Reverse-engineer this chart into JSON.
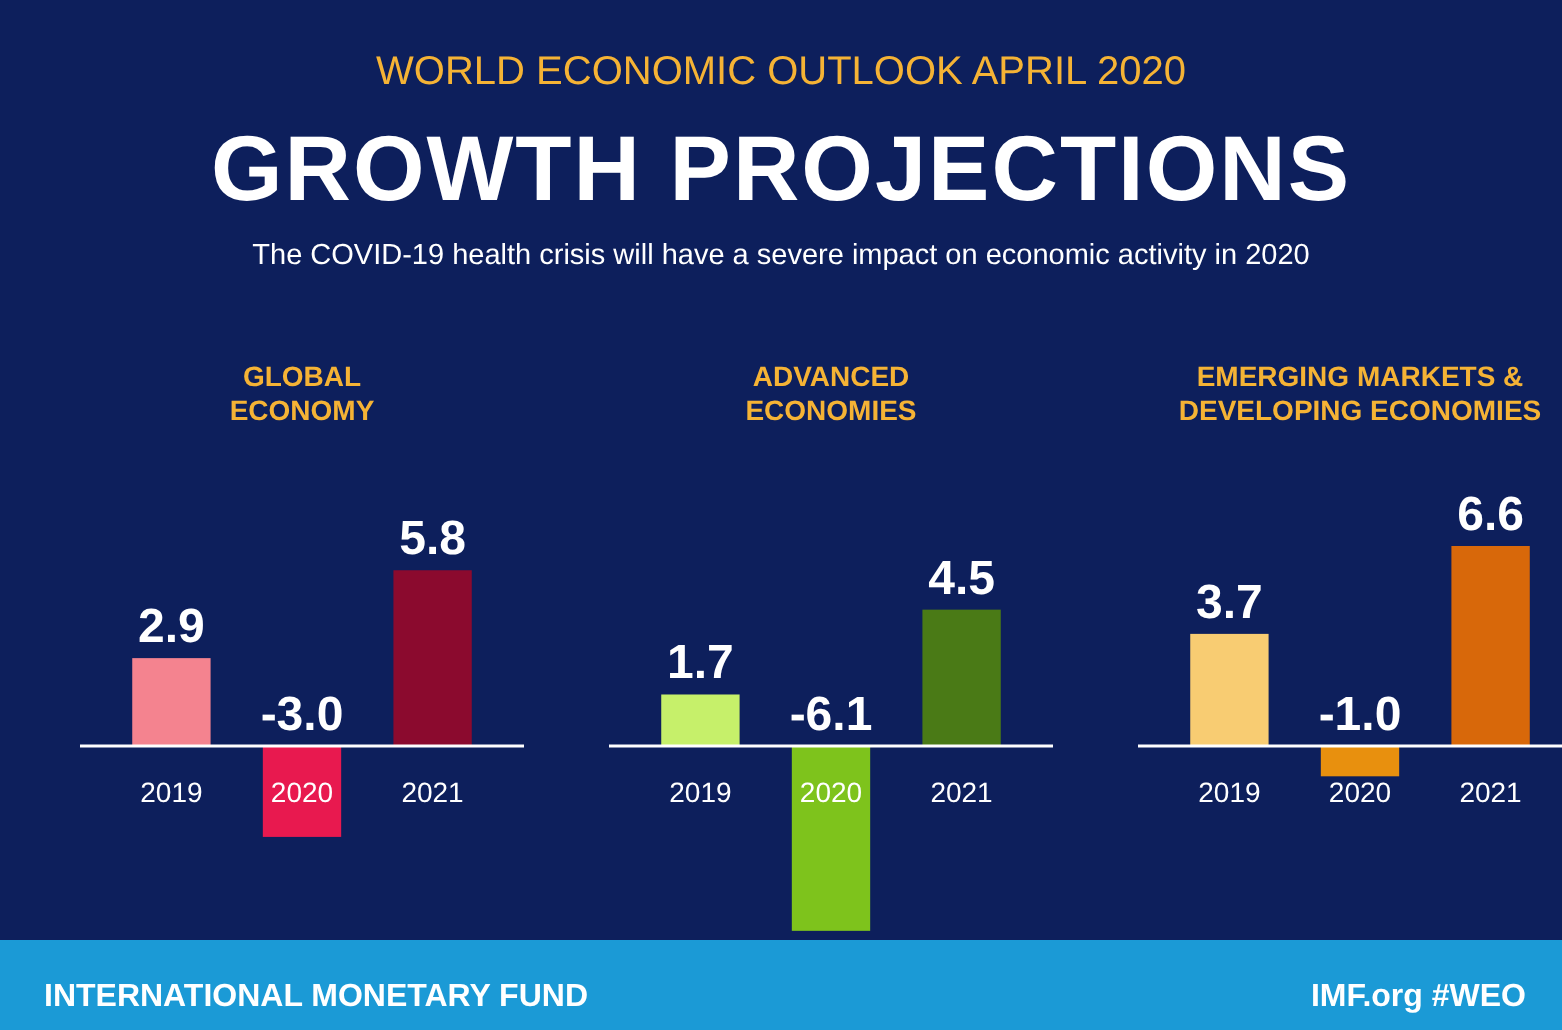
{
  "chart_data": [
    {
      "type": "other",
      "title": "GROWTH PROJECTIONS",
      "subtitle": "The COVID-19 health crisis will have a severe impact on economic activity in 2020",
      "annotations": [
        "WORLD ECONOMIC OUTLOOK  APRIL 2020",
        "INTERNATIONAL MONETARY FUND",
        "IMF.org  #WEO"
      ]
    },
    {
      "type": "bar",
      "title": "GLOBAL ECONOMY",
      "categories": [
        "2019",
        "2020",
        "2021"
      ],
      "values": [
        2.9,
        -3.0,
        5.8
      ],
      "colors": [
        "#f4838f",
        "#e8194f",
        "#8b0a2e"
      ],
      "value_labels": [
        "2.9",
        "-3.0",
        "5.8"
      ],
      "tick_labels": "x"
    },
    {
      "type": "bar",
      "title": "ADVANCED ECONOMIES",
      "categories": [
        "2019",
        "2020",
        "2021"
      ],
      "values": [
        1.7,
        -6.1,
        4.5
      ],
      "colors": [
        "#c6f06a",
        "#7ec31c",
        "#4a7a16"
      ],
      "value_labels": [
        "1.7",
        "-6.1",
        "4.5"
      ],
      "tick_labels": "x"
    },
    {
      "type": "bar",
      "title": "EMERGING MARKETS & DEVELOPING ECONOMIES",
      "categories": [
        "2019",
        "2020",
        "2021"
      ],
      "values": [
        3.7,
        -1.0,
        6.6
      ],
      "colors": [
        "#f8cc72",
        "#e8900e",
        "#d8680a"
      ],
      "value_labels": [
        "3.7",
        "-1.0",
        "6.6"
      ],
      "tick_labels": "x"
    }
  ]
}
